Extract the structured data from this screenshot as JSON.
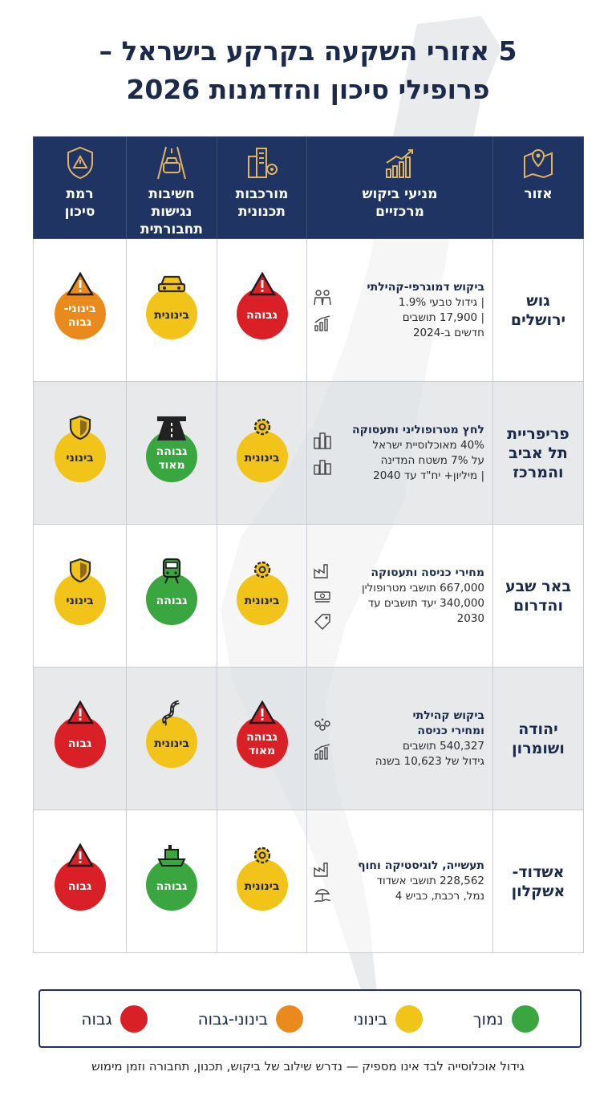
{
  "title": {
    "line1": "5 אזורי השקעה בקרקע בישראל –",
    "line2": "פרופילי סיכון והזדמנות 2026"
  },
  "columns": {
    "region": "אזור",
    "drivers_1": "מניעי ביקוש",
    "drivers_2": "מרכזיים",
    "planning_1": "מורכבות",
    "planning_2": "תכנונית",
    "access_1": "חשיבות",
    "access_2": "נגישות",
    "access_3": "תחבורתית",
    "risk_1": "רמת",
    "risk_2": "סיכון"
  },
  "rows": [
    {
      "region_1": "גוש",
      "region_2": "ירושלים",
      "driver_title": "ביקוש דמוגרפי-קהילתי",
      "driver_l1": "| גידול טבעי 1.9%",
      "driver_l2": "| 17,900 תושבים",
      "driver_l3": "חדשים ב-2024",
      "planning": "גבוהה",
      "access": "בינונית",
      "risk_1": "בינוני-",
      "risk_2": "גבוה",
      "colors": {
        "planning": "#d92026",
        "access": "#f2c318",
        "risk": "#ea8a1d"
      }
    },
    {
      "region_1": "פריפריית",
      "region_2": "תל אביב",
      "region_3": "והמרכז",
      "driver_title": "לחץ מטרופוליני ותעסוקה",
      "driver_l1": "40% מאוכלוסיית ישראל",
      "driver_l2": "על 7% משטח המדינה",
      "driver_l3": "| מיליון+ יח\"ד עד 2040",
      "planning": "בינונית",
      "access_1": "גבוהה",
      "access_2": "מאוד",
      "risk": "בינוני",
      "colors": {
        "planning": "#f2c318",
        "access": "#3aa63f",
        "risk": "#f2c318"
      }
    },
    {
      "region_1": "באר שבע",
      "region_2": "והדרום",
      "driver_title": "מחירי כניסה ותעסוקה",
      "driver_l1": "667,000 תושבי מטרופולין",
      "driver_l2": "340,000 יעד תושבים עד",
      "driver_l3": "2030",
      "planning": "בינונית",
      "access": "גבוהה",
      "risk": "בינוני",
      "colors": {
        "planning": "#f2c318",
        "access": "#3aa63f",
        "risk": "#f2c318"
      }
    },
    {
      "region_1": "יהודה",
      "region_2": "ושומרון",
      "driver_title_1": "ביקוש קהילתי",
      "driver_title_2": "ומחירי כניסה",
      "driver_l1": "540,327 תושבים",
      "driver_l2": "גידול של 10,623 בשנה",
      "planning_1": "גבוהה",
      "planning_2": "מאוד",
      "access": "בינונית",
      "risk": "גבוה",
      "colors": {
        "planning": "#d92026",
        "access": "#f2c318",
        "risk": "#d92026"
      }
    },
    {
      "region_1": "אשדוד-",
      "region_2": "אשקלון",
      "driver_title": "תעשייה, לוגיסטיקה וחוף",
      "driver_l1": "228,562 תושבי אשדוד",
      "driver_l2": "נמל, רכבת, כביש 4",
      "planning": "בינונית",
      "access": "גבוהה",
      "risk": "גבוה",
      "colors": {
        "planning": "#f2c318",
        "access": "#3aa63f",
        "risk": "#d92026"
      }
    }
  ],
  "legend": {
    "low": "נמוך",
    "medium": "בינוני",
    "medium_high": "בינוני-גבוה",
    "high": "גבוה",
    "colors": {
      "low": "#3aa63f",
      "medium": "#f2c318",
      "medium_high": "#ea8a1d",
      "high": "#d92026"
    }
  },
  "footnote": "גידול אוכלוסייה לבד אינו מספיק — נדרש שילוב של ביקוש, תכנון, תחבורה וזמן מימוש"
}
